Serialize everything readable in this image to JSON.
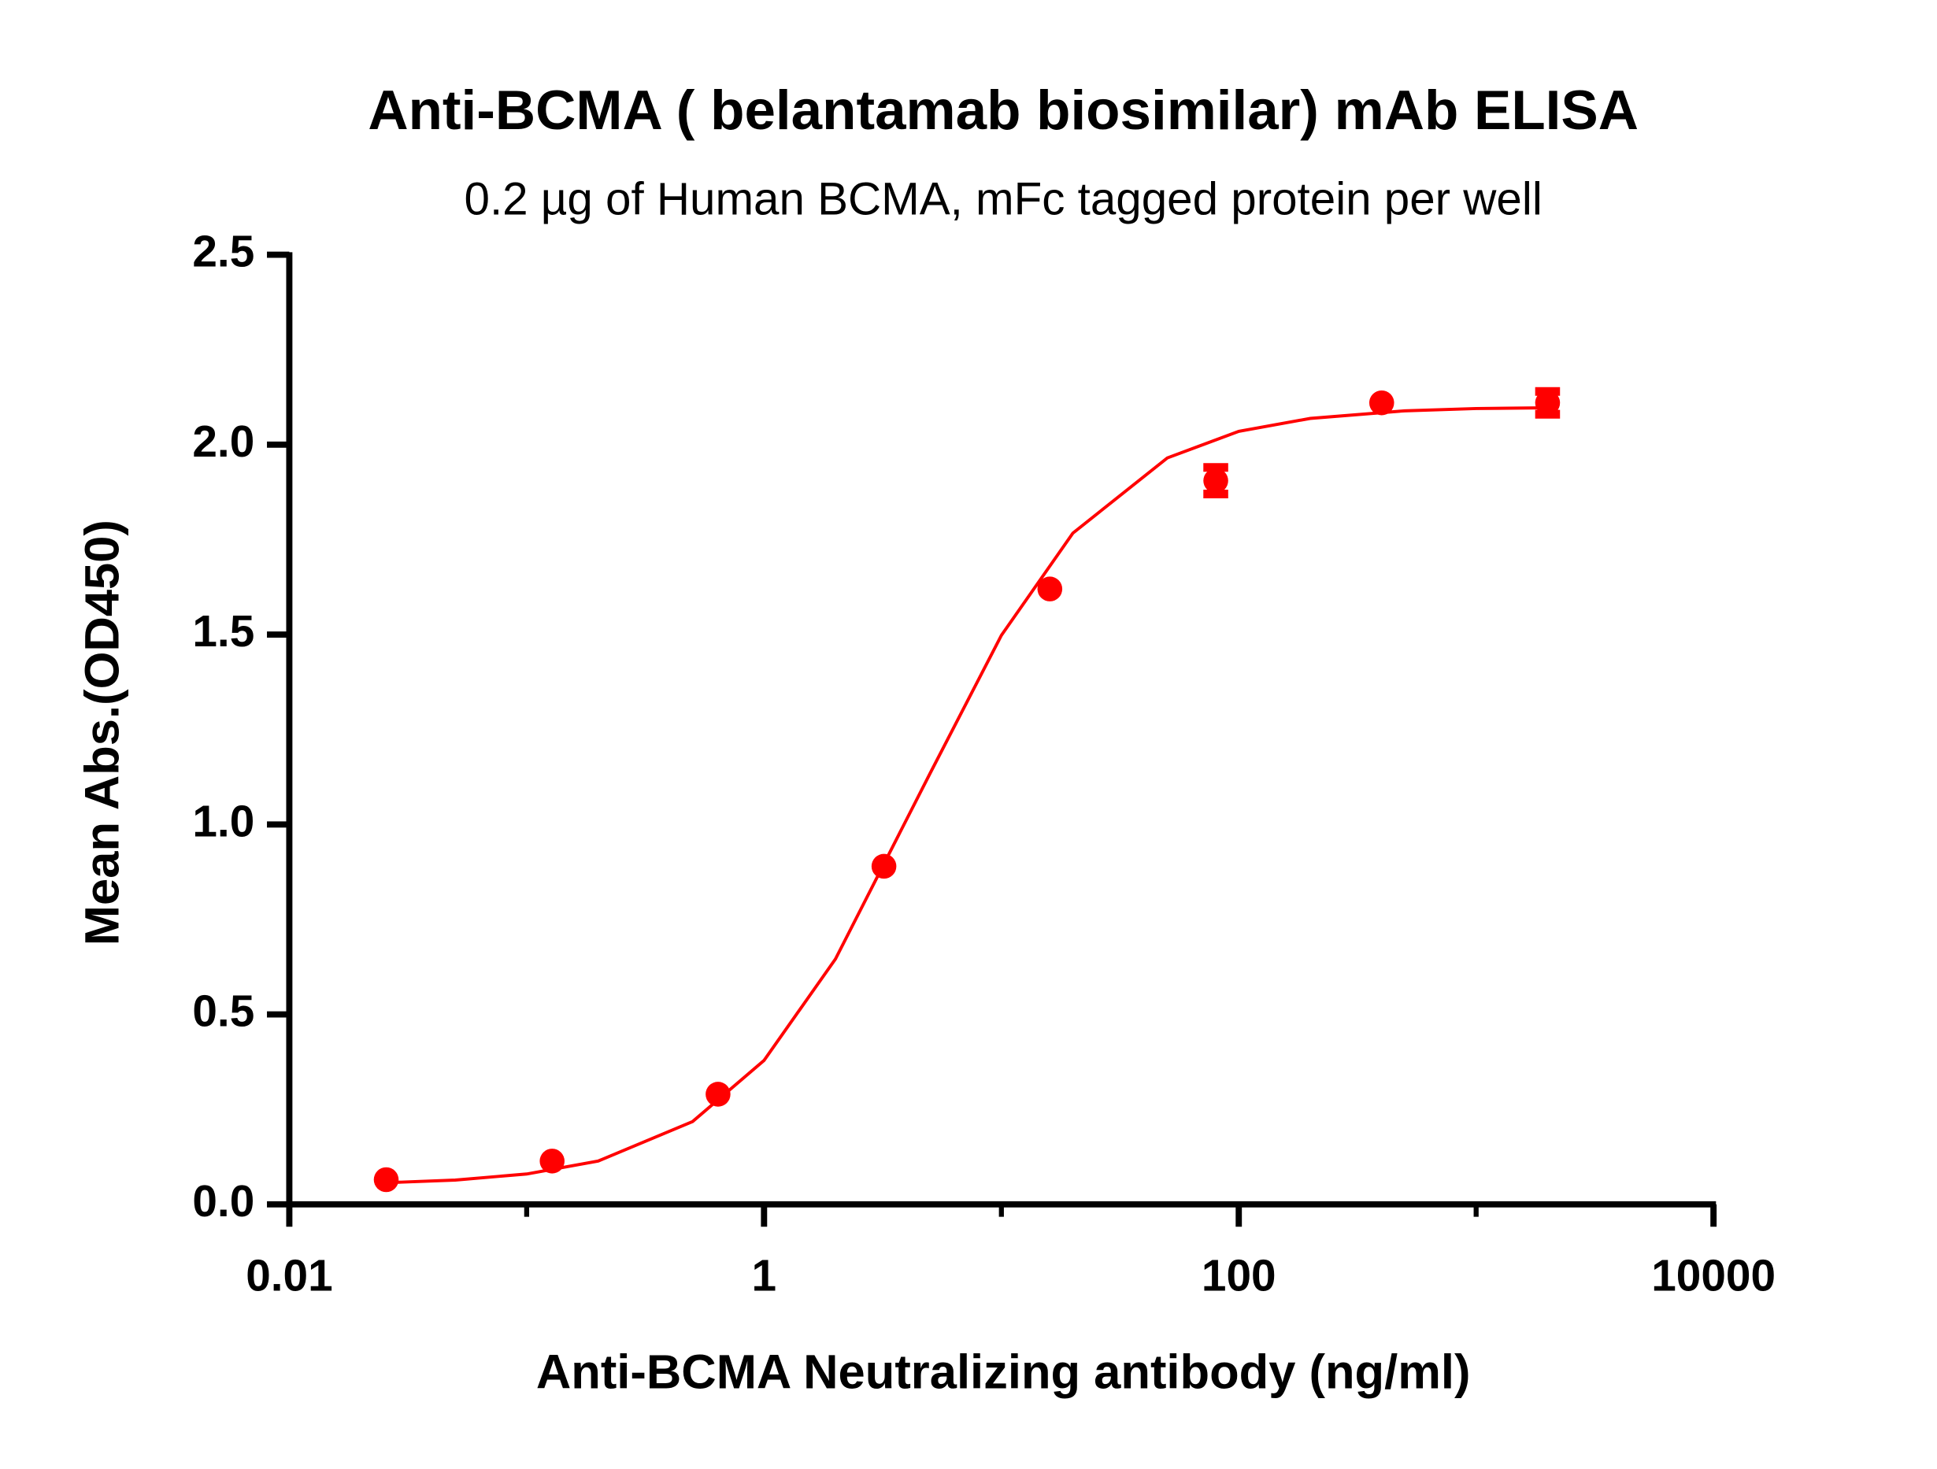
{
  "chart_data": {
    "type": "scatter",
    "title": "Anti-BCMA ( belantamab biosimilar) mAb ELISA",
    "subtitle": "0.2 µg of Human BCMA, mFc tagged protein per well",
    "x_label": "Anti-BCMA Neutralizing antibody (ng/ml)",
    "y_label": "Mean Abs.(OD450)",
    "x_scale": "log",
    "xlim": [
      0.01,
      10000
    ],
    "xticks": [
      0.01,
      1,
      100,
      10000
    ],
    "xminorticks": [
      0.1,
      10,
      1000
    ],
    "ylim": [
      0,
      2.5
    ],
    "yticks": [
      {
        "value": 0,
        "label": "0.0"
      },
      0.5,
      {
        "value": 1,
        "label": "1.0"
      },
      1.5,
      {
        "value": 2,
        "label": "2.0"
      },
      2.5
    ],
    "color": "#ff0000",
    "x": [
      0.0256,
      0.128,
      0.64,
      3.2,
      16,
      80,
      400,
      2000
    ],
    "values": [
      0.065,
      0.114,
      0.29,
      0.89,
      1.62,
      1.905,
      2.11,
      2.11
    ],
    "errors": [
      null,
      null,
      null,
      null,
      null,
      0.035,
      null,
      0.03
    ],
    "fit": {
      "x": [
        0.0256,
        0.05,
        0.1,
        0.2,
        0.5,
        1,
        2,
        5,
        10,
        20,
        50,
        100,
        200,
        500,
        1000,
        2000
      ],
      "values": [
        0.057,
        0.064,
        0.08,
        0.114,
        0.218,
        0.379,
        0.646,
        1.134,
        1.498,
        1.767,
        1.965,
        2.035,
        2.069,
        2.089,
        2.095,
        2.097
      ]
    }
  }
}
